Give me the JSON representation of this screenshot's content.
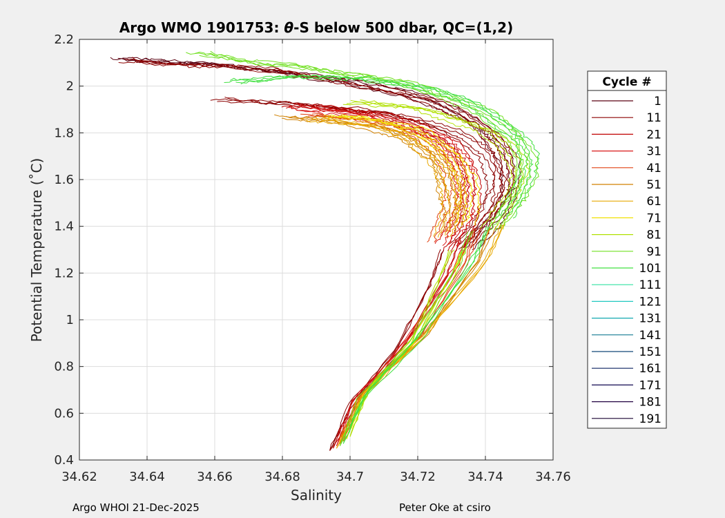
{
  "chart_data": {
    "type": "line",
    "title_prefix": "Argo WMO 1901753: ",
    "title_symbol": "θ",
    "title_suffix": "-S below 500 dbar,  QC=(1,2)",
    "xlabel": "Salinity",
    "ylabel": "Potential Temperature (˚C)",
    "xlim": [
      34.62,
      34.76
    ],
    "ylim": [
      0.4,
      2.2
    ],
    "xticks": [
      34.62,
      34.64,
      34.66,
      34.68,
      34.7,
      34.72,
      34.74,
      34.76
    ],
    "xtick_labels": [
      "34.62",
      "34.64",
      "34.66",
      "34.68",
      "34.7",
      "34.72",
      "34.74",
      "34.76"
    ],
    "yticks": [
      0.4,
      0.6,
      0.8,
      1.0,
      1.2,
      1.4,
      1.6,
      1.8,
      2.0,
      2.2
    ],
    "ytick_labels": [
      "0.4",
      "0.6",
      "0.8",
      "1",
      "1.2",
      "1.4",
      "1.6",
      "1.8",
      "2",
      "2.2"
    ],
    "grid": true,
    "legend_placement": "outside-right",
    "legend": {
      "title": "Cycle #",
      "entries": [
        {
          "label": "1",
          "color": "#5a0010"
        },
        {
          "label": "11",
          "color": "#8b0000"
        },
        {
          "label": "21",
          "color": "#c00000"
        },
        {
          "label": "31",
          "color": "#d81818"
        },
        {
          "label": "41",
          "color": "#e04010"
        },
        {
          "label": "51",
          "color": "#d08000"
        },
        {
          "label": "61",
          "color": "#e8a800"
        },
        {
          "label": "71",
          "color": "#f0e000"
        },
        {
          "label": "81",
          "color": "#b0e000"
        },
        {
          "label": "91",
          "color": "#70e020"
        },
        {
          "label": "101",
          "color": "#40e040"
        },
        {
          "label": "111",
          "color": "#30e0a0"
        },
        {
          "label": "121",
          "color": "#20c8c0"
        },
        {
          "label": "131",
          "color": "#10a8b0"
        },
        {
          "label": "141",
          "color": "#107890"
        },
        {
          "label": "151",
          "color": "#104878"
        },
        {
          "label": "161",
          "color": "#0c2060"
        },
        {
          "label": "171",
          "color": "#100850"
        },
        {
          "label": "181",
          "color": "#200040"
        },
        {
          "label": "191",
          "color": "#180030"
        }
      ]
    },
    "series": [
      {
        "color": "#5a0010",
        "x": [
          34.632,
          34.64,
          34.65,
          34.66,
          34.67,
          34.68,
          34.69,
          34.7,
          34.71,
          34.72,
          34.728,
          34.735,
          34.74,
          34.744,
          34.747,
          34.748,
          34.747,
          34.744,
          34.74,
          34.735
        ],
        "y": [
          2.12,
          2.11,
          2.1,
          2.09,
          2.08,
          2.06,
          2.04,
          2.02,
          1.99,
          1.95,
          1.91,
          1.86,
          1.81,
          1.75,
          1.68,
          1.6,
          1.52,
          1.45,
          1.38,
          1.3
        ]
      },
      {
        "color": "#8b0000",
        "x": [
          34.635,
          34.645,
          34.655,
          34.665,
          34.675,
          34.685,
          34.695,
          34.705,
          34.715,
          34.725,
          34.732,
          34.738,
          34.742,
          34.745,
          34.746,
          34.745,
          34.742,
          34.738,
          34.733
        ],
        "y": [
          2.11,
          2.1,
          2.09,
          2.08,
          2.07,
          2.05,
          2.03,
          2.0,
          1.97,
          1.93,
          1.89,
          1.84,
          1.78,
          1.72,
          1.64,
          1.56,
          1.48,
          1.4,
          1.32
        ]
      },
      {
        "color": "#8b0000",
        "x": [
          34.662,
          34.672,
          34.682,
          34.692,
          34.702,
          34.712,
          34.722,
          34.73,
          34.736,
          34.74,
          34.743,
          34.744,
          34.742,
          34.738,
          34.733
        ],
        "y": [
          1.94,
          1.93,
          1.92,
          1.91,
          1.9,
          1.88,
          1.85,
          1.81,
          1.76,
          1.7,
          1.63,
          1.55,
          1.47,
          1.39,
          1.31
        ]
      },
      {
        "color": "#c00000",
        "x": [
          34.682,
          34.69,
          34.7,
          34.71,
          34.718,
          34.725,
          34.73,
          34.733,
          34.735,
          34.736,
          34.736,
          34.735,
          34.733,
          34.73
        ],
        "y": [
          1.92,
          1.91,
          1.89,
          1.87,
          1.84,
          1.8,
          1.75,
          1.69,
          1.63,
          1.57,
          1.5,
          1.43,
          1.37,
          1.3
        ]
      },
      {
        "color": "#d81818",
        "x": [
          34.685,
          34.695,
          34.705,
          34.713,
          34.72,
          34.726,
          34.73,
          34.733,
          34.734,
          34.734,
          34.733,
          34.731,
          34.728
        ],
        "y": [
          1.9,
          1.89,
          1.87,
          1.84,
          1.81,
          1.77,
          1.72,
          1.66,
          1.6,
          1.53,
          1.46,
          1.39,
          1.32
        ]
      },
      {
        "color": "#e04010",
        "x": [
          34.688,
          34.698,
          34.707,
          34.715,
          34.721,
          34.726,
          34.729,
          34.731,
          34.731,
          34.73,
          34.728,
          34.726
        ],
        "y": [
          1.88,
          1.87,
          1.85,
          1.82,
          1.78,
          1.73,
          1.68,
          1.62,
          1.55,
          1.48,
          1.41,
          1.34
        ]
      },
      {
        "color": "#d08000",
        "x": [
          34.68,
          34.69,
          34.7,
          34.71,
          34.717,
          34.722,
          34.726,
          34.728,
          34.729,
          34.73,
          34.731,
          34.73
        ],
        "y": [
          1.87,
          1.86,
          1.84,
          1.81,
          1.78,
          1.73,
          1.68,
          1.62,
          1.57,
          1.52,
          1.46,
          1.38
        ]
      },
      {
        "color": "#e8a800",
        "x": [
          34.69,
          34.7,
          34.708,
          34.715,
          34.72,
          34.724,
          34.727,
          34.729,
          34.73,
          34.73,
          34.729,
          34.727
        ],
        "y": [
          1.86,
          1.85,
          1.83,
          1.8,
          1.76,
          1.71,
          1.66,
          1.6,
          1.54,
          1.48,
          1.42,
          1.36
        ]
      },
      {
        "color": "#f0e000",
        "x": [
          34.695,
          34.705,
          34.713,
          34.72,
          34.725,
          34.729,
          34.732,
          34.734,
          34.735,
          34.735,
          34.734
        ],
        "y": [
          1.87,
          1.86,
          1.84,
          1.81,
          1.77,
          1.72,
          1.67,
          1.61,
          1.55,
          1.48,
          1.41
        ]
      },
      {
        "color": "#b0e000",
        "x": [
          34.7,
          34.71,
          34.72,
          34.728,
          34.735,
          34.741,
          34.746,
          34.749,
          34.75,
          34.748,
          34.745,
          34.742
        ],
        "y": [
          1.93,
          1.92,
          1.9,
          1.87,
          1.84,
          1.8,
          1.75,
          1.69,
          1.62,
          1.54,
          1.46,
          1.39
        ]
      },
      {
        "color": "#70e020",
        "x": [
          34.655,
          34.665,
          34.675,
          34.685,
          34.695,
          34.705,
          34.715,
          34.725,
          34.733,
          34.74,
          34.746,
          34.75,
          34.752,
          34.752,
          34.75,
          34.746,
          34.742
        ],
        "y": [
          2.14,
          2.12,
          2.1,
          2.08,
          2.06,
          2.04,
          2.01,
          1.97,
          1.93,
          1.88,
          1.82,
          1.76,
          1.69,
          1.61,
          1.53,
          1.45,
          1.38
        ]
      },
      {
        "color": "#40e040",
        "x": [
          34.665,
          34.675,
          34.685,
          34.695,
          34.705,
          34.715,
          34.725,
          34.733,
          34.74,
          34.746,
          34.751,
          34.753,
          34.752,
          34.749,
          34.745
        ],
        "y": [
          2.02,
          2.03,
          2.04,
          2.04,
          2.03,
          2.01,
          1.98,
          1.94,
          1.89,
          1.83,
          1.76,
          1.68,
          1.6,
          1.52,
          1.44
        ]
      }
    ],
    "lower_limb": {
      "upper_end": [
        [
          34.728,
          1.3
        ],
        [
          34.732,
          1.34
        ],
        [
          34.735,
          1.37
        ],
        [
          34.738,
          1.39
        ],
        [
          34.742,
          1.4
        ],
        [
          34.745,
          1.41
        ],
        [
          34.733,
          1.31
        ],
        [
          34.73,
          1.3
        ],
        [
          34.736,
          1.38
        ],
        [
          34.74,
          1.4
        ]
      ],
      "lower_end": [
        [
          34.694,
          0.44
        ],
        [
          34.695,
          0.45
        ],
        [
          34.696,
          0.46
        ],
        [
          34.697,
          0.47
        ],
        [
          34.698,
          0.48
        ],
        [
          34.696,
          0.45
        ],
        [
          34.699,
          0.49
        ],
        [
          34.7,
          0.5
        ],
        [
          34.697,
          0.46
        ],
        [
          34.698,
          0.47
        ]
      ],
      "colors": [
        "#8b0000",
        "#c00000",
        "#d81818",
        "#e04010",
        "#d08000",
        "#e8a800",
        "#f0e000",
        "#b0e000",
        "#70e020",
        "#40e040"
      ]
    }
  },
  "footer": {
    "left": "Argo WHOI 21-Dec-2025",
    "right": "Peter Oke at csiro"
  }
}
